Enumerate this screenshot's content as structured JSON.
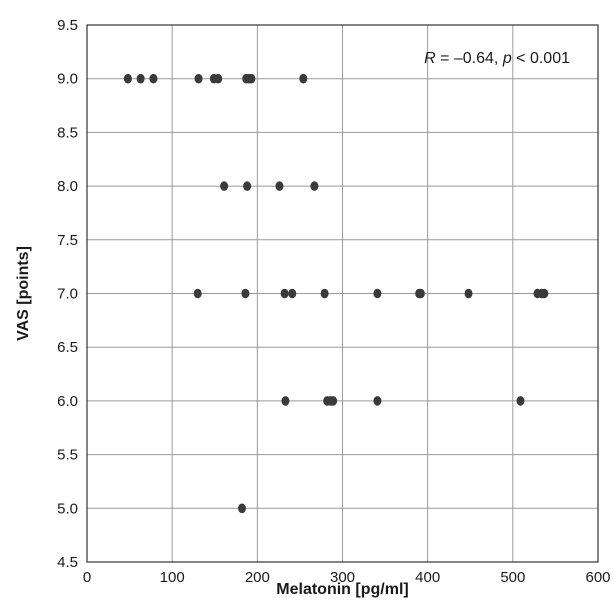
{
  "chart_data": {
    "type": "scatter",
    "title": "",
    "xlabel": "Melatonin [pg/ml]",
    "ylabel": "VAS [points]",
    "xlim": [
      0,
      600
    ],
    "ylim": [
      4.5,
      9.5
    ],
    "x_ticks": [
      0,
      100,
      200,
      300,
      400,
      500,
      600
    ],
    "x_tick_labels": [
      "0",
      "100",
      "200",
      "300",
      "400",
      "500",
      "600"
    ],
    "y_ticks": [
      4.5,
      5.0,
      5.5,
      6.0,
      6.5,
      7.0,
      7.5,
      8.0,
      8.5,
      9.0,
      9.5
    ],
    "y_tick_labels": [
      "4.5",
      "5.0",
      "5.5",
      "6.0",
      "6.5",
      "7.0",
      "7.5",
      "8.0",
      "8.5",
      "9.0",
      "9.5"
    ],
    "grid": "vertical and horizontal at major ticks",
    "annotation": {
      "R_label": "R",
      "R_value": " = –0.64, ",
      "p_label": "p",
      "p_value": " < 0.001",
      "position": "top-right"
    },
    "marker_color": "#3a3a3a",
    "points": [
      {
        "x": 48,
        "y": 9.0
      },
      {
        "x": 63,
        "y": 9.0
      },
      {
        "x": 78,
        "y": 9.0
      },
      {
        "x": 131,
        "y": 9.0
      },
      {
        "x": 149,
        "y": 9.0
      },
      {
        "x": 154,
        "y": 9.0
      },
      {
        "x": 187,
        "y": 9.0
      },
      {
        "x": 190,
        "y": 9.0
      },
      {
        "x": 193,
        "y": 9.0
      },
      {
        "x": 254,
        "y": 9.0
      },
      {
        "x": 161,
        "y": 8.0
      },
      {
        "x": 188,
        "y": 8.0
      },
      {
        "x": 226,
        "y": 8.0
      },
      {
        "x": 267,
        "y": 8.0
      },
      {
        "x": 130,
        "y": 7.0
      },
      {
        "x": 186,
        "y": 7.0
      },
      {
        "x": 232,
        "y": 7.0
      },
      {
        "x": 241,
        "y": 7.0
      },
      {
        "x": 279,
        "y": 7.0
      },
      {
        "x": 341,
        "y": 7.0
      },
      {
        "x": 390,
        "y": 7.0
      },
      {
        "x": 392,
        "y": 7.0
      },
      {
        "x": 448,
        "y": 7.0
      },
      {
        "x": 529,
        "y": 7.0
      },
      {
        "x": 534,
        "y": 7.0
      },
      {
        "x": 537,
        "y": 7.0
      },
      {
        "x": 233,
        "y": 6.0
      },
      {
        "x": 282,
        "y": 6.0
      },
      {
        "x": 286,
        "y": 6.0
      },
      {
        "x": 289,
        "y": 6.0
      },
      {
        "x": 341,
        "y": 6.0
      },
      {
        "x": 509,
        "y": 6.0
      },
      {
        "x": 182,
        "y": 5.0
      }
    ]
  }
}
